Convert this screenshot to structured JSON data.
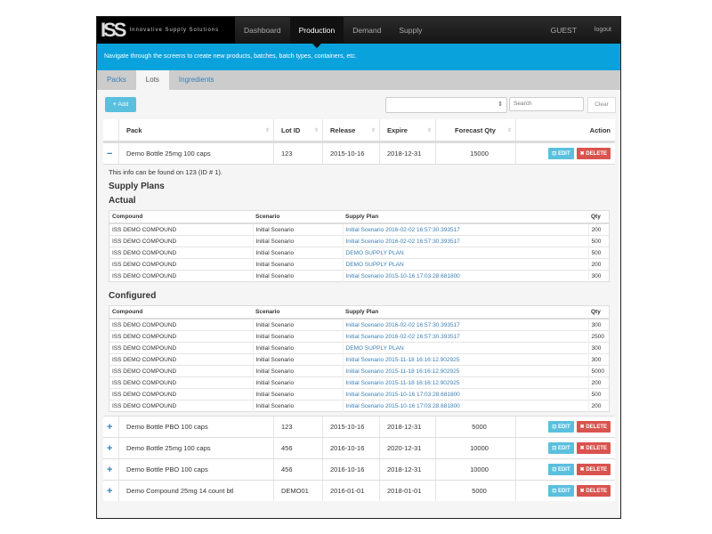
{
  "nav": {
    "brand": "ISS",
    "brand_text": "Innovative Supply Solutions",
    "items": [
      "Dashboard",
      "Production",
      "Demand",
      "Supply"
    ],
    "active": "Production",
    "user": "GUEST",
    "logout": "logout"
  },
  "banner": "Navigate through the screens to create new products, batches, batch types, containers, etc.",
  "tabs": [
    "Packs",
    "Lots",
    "Ingredients"
  ],
  "active_tab": "Lots",
  "toolbar": {
    "add": "Add",
    "search_placeholder": "Search",
    "clear": "Clear"
  },
  "table": {
    "headers": [
      "Pack",
      "Lot ID",
      "Release",
      "Expire",
      "Forecast Qty",
      "Action"
    ],
    "edit": "EDIT",
    "delete": "DELETE",
    "rows": [
      {
        "toggle": "−",
        "pack": "Demo Bottle 25mg 100 caps",
        "lot": "123",
        "release": "2015-10-16",
        "expire": "2018-12-31",
        "qty": "15000"
      },
      {
        "toggle": "+",
        "pack": "Demo Bottle PBO 100 caps",
        "lot": "123",
        "release": "2015-10-16",
        "expire": "2018-12-31",
        "qty": "5000"
      },
      {
        "toggle": "+",
        "pack": "Demo Bottle 25mg 100 caps",
        "lot": "456",
        "release": "2016-10-16",
        "expire": "2020-12-31",
        "qty": "10000"
      },
      {
        "toggle": "+",
        "pack": "Demo Bottle PBO 100 caps",
        "lot": "456",
        "release": "2016-10-16",
        "expire": "2018-12-31",
        "qty": "10000"
      },
      {
        "toggle": "+",
        "pack": "Demo Compound 25mg 14 count btl",
        "lot": "DEMO01",
        "release": "2016-01-01",
        "expire": "2018-01-01",
        "qty": "5000"
      }
    ]
  },
  "detail": {
    "info": "This info can be found on 123 (ID # 1).",
    "title": "Supply Plans",
    "actual_title": "Actual",
    "configured_title": "Configured",
    "headers": [
      "Compound",
      "Scenario",
      "Supply Plan",
      "Qty"
    ],
    "actual": [
      [
        "ISS DEMO COMPOUND",
        "Initial Scenario",
        "Initial Scenario 2016-02-02 16:57:30.393517",
        "200"
      ],
      [
        "ISS DEMO COMPOUND",
        "Initial Scenario",
        "Initial Scenario 2016-02-02 16:57:30.393517",
        "500"
      ],
      [
        "ISS DEMO COMPOUND",
        "Initial Scenario",
        "DEMO SUPPLY PLAN",
        "500"
      ],
      [
        "ISS DEMO COMPOUND",
        "Initial Scenario",
        "DEMO SUPPLY PLAN",
        "200"
      ],
      [
        "ISS DEMO COMPOUND",
        "Initial Scenario",
        "Initial Scenario 2015-10-16 17:03:28.681800",
        "300"
      ]
    ],
    "configured": [
      [
        "ISS DEMO COMPOUND",
        "Initial Scenario",
        "Initial Scenario 2016-02-02 16:57:30.393517",
        "300"
      ],
      [
        "ISS DEMO COMPOUND",
        "Initial Scenario",
        "Initial Scenario 2016-02-02 16:57:30.393517",
        "2500"
      ],
      [
        "ISS DEMO COMPOUND",
        "Initial Scenario",
        "DEMO SUPPLY PLAN",
        "300"
      ],
      [
        "ISS DEMO COMPOUND",
        "Initial Scenario",
        "Initial Scenario 2015-11-18 16:16:12.902925",
        "300"
      ],
      [
        "ISS DEMO COMPOUND",
        "Initial Scenario",
        "Initial Scenario 2015-11-18 16:16:12.902925",
        "5000"
      ],
      [
        "ISS DEMO COMPOUND",
        "Initial Scenario",
        "Initial Scenario 2015-11-18 16:16:12.902925",
        "200"
      ],
      [
        "ISS DEMO COMPOUND",
        "Initial Scenario",
        "Initial Scenario 2015-10-16 17:03:28.681800",
        "500"
      ],
      [
        "ISS DEMO COMPOUND",
        "Initial Scenario",
        "Initial Scenario 2015-10-16 17:03:28.681800",
        "200"
      ]
    ]
  }
}
